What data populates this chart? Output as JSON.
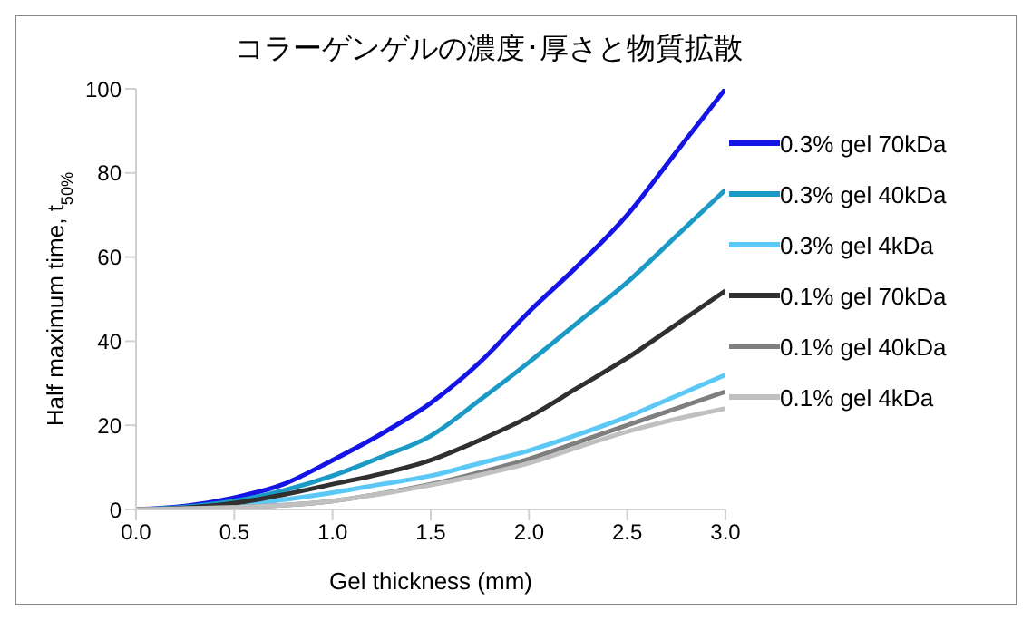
{
  "chart_data": {
    "type": "line",
    "title": "コラーゲンゲルの濃度･厚さと物質拡散",
    "xlabel": "Gel thickness (mm)",
    "ylabel": "Half maximum time, t$_{50%}$",
    "x": [
      0,
      0.25,
      0.5,
      0.75,
      1.0,
      1.25,
      1.5,
      1.75,
      2.0,
      2.25,
      2.5,
      2.75,
      3.0
    ],
    "series": [
      {
        "name": "0.3% gel 70kDa",
        "color": "#1414e6",
        "values": [
          0,
          0.8,
          2.8,
          6,
          11.7,
          18,
          25.3,
          35,
          47,
          58,
          70,
          85,
          100
        ]
      },
      {
        "name": "0.3% gel 40kDa",
        "color": "#1b9ac6",
        "values": [
          0,
          0.6,
          2,
          4.5,
          8,
          12.5,
          17.5,
          26,
          35,
          44.5,
          54,
          65,
          76
        ]
      },
      {
        "name": "0.3% gel 4kDa",
        "color": "#5cc8f5",
        "values": [
          0,
          0.3,
          1,
          2.3,
          4,
          6,
          8,
          11,
          14,
          17.8,
          22,
          27,
          32
        ]
      },
      {
        "name": "0.1% gel 70kDa",
        "color": "#303030",
        "values": [
          0,
          0.4,
          1.5,
          3.5,
          6,
          8.5,
          11.7,
          16.5,
          22,
          29,
          36,
          44,
          52
        ]
      },
      {
        "name": "0.1% gel 40kDa",
        "color": "#7f7f7f",
        "values": [
          0,
          0.2,
          0.5,
          1,
          2,
          3.8,
          6,
          8.8,
          12,
          16,
          20,
          24,
          28
        ]
      },
      {
        "name": "0.1% gel 4kDa",
        "color": "#c0c0c0",
        "values": [
          0,
          0.2,
          0.5,
          1,
          2,
          3.7,
          5.8,
          8.2,
          11,
          14.8,
          18.5,
          21.5,
          24
        ]
      }
    ],
    "xlim": [
      0,
      3.0
    ],
    "xticks": [
      {
        "value": 0,
        "label": "0.0"
      },
      {
        "value": 0.5,
        "label": "0.5"
      },
      {
        "value": 1,
        "label": "1.0"
      },
      {
        "value": 1.5,
        "label": "1.5"
      },
      {
        "value": 2,
        "label": "2.0"
      },
      {
        "value": 2.5,
        "label": "2.5"
      },
      {
        "value": 3,
        "label": "3.0"
      }
    ],
    "ylim": [
      0,
      100
    ],
    "yticks": [
      0,
      20,
      40,
      60,
      80,
      100
    ],
    "grid": false,
    "legend": "right"
  }
}
